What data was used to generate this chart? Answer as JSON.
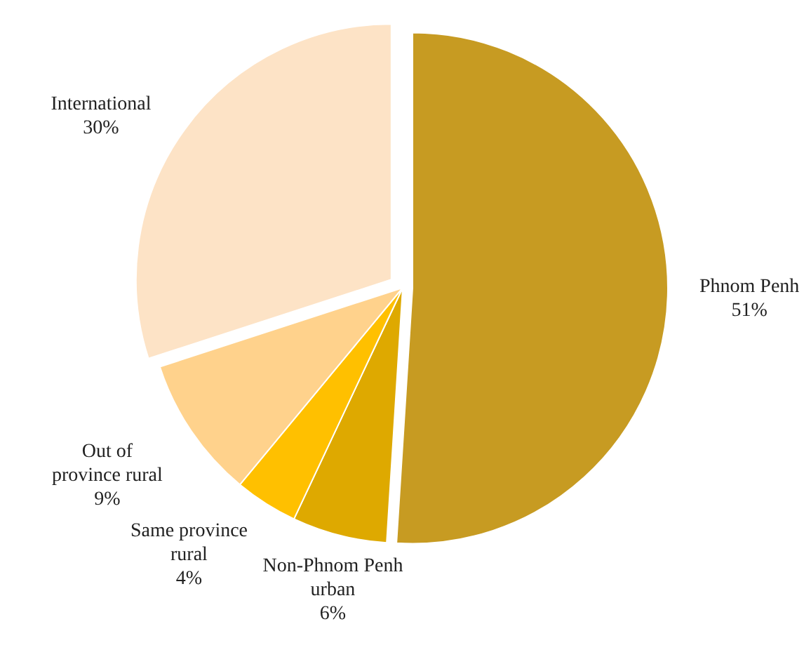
{
  "chart_data": {
    "type": "pie",
    "categories": [
      "Phnom Penh",
      "Non-Phnom Penh urban",
      "Same province rural",
      "Out of province rural",
      "International"
    ],
    "values": [
      51,
      6,
      4,
      9,
      30
    ],
    "value_labels": [
      "51%",
      "6%",
      "4%",
      "9%",
      "30%"
    ],
    "colors": [
      "#c79b22",
      "#dea900",
      "#ffc000",
      "#ffd28c",
      "#fde3c6"
    ]
  }
}
